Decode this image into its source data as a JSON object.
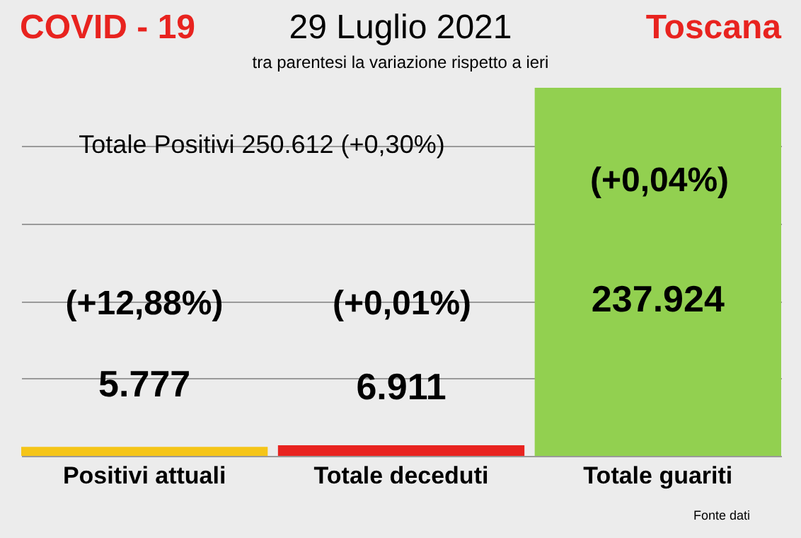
{
  "chart_data": {
    "type": "bar",
    "title": "29 Luglio 2021",
    "subtitle": "tra parentesi la variazione rispetto a ieri",
    "categories": [
      "Positivi attuali",
      "Totale deceduti",
      "Totale guariti"
    ],
    "values": [
      5777,
      6911,
      237924
    ],
    "colors": [
      "#f5c518",
      "#e8231f",
      "#92d050"
    ],
    "value_labels": [
      "5.777",
      "6.911",
      "237.924"
    ],
    "yticks": [
      {
        "value": 0,
        "label": null
      },
      {
        "value": 50000,
        "label": null
      },
      {
        "value": 100000,
        "label": null
      },
      {
        "value": 150000,
        "label": null
      },
      {
        "value": 200000,
        "label": null
      }
    ],
    "grid": "y",
    "tick_labels": "x",
    "annotations": [
      "COVID - 19",
      "Toscana",
      "Totale Positivi    250.612 (+0,30%)",
      "(+12,88%)",
      "(+0,01%)",
      "(+0,04%)",
      "Fonte dati"
    ]
  }
}
